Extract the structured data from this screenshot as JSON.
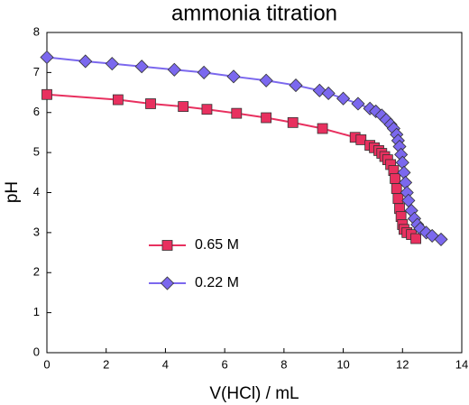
{
  "chart_data": {
    "type": "line",
    "title": "ammonia titration",
    "x_label": "V(HCl) / mL",
    "y_label": "pH",
    "xlim": [
      0,
      14
    ],
    "ylim": [
      0,
      8
    ],
    "xticks": [
      0,
      2,
      4,
      6,
      8,
      10,
      12,
      14
    ],
    "yticks": [
      0,
      1,
      2,
      3,
      4,
      5,
      6,
      7,
      8
    ],
    "legend": "lower left",
    "series": [
      {
        "name": "0.65 M",
        "color": "#e8305f",
        "marker": "square",
        "x": [
          0,
          2.4,
          3.5,
          4.6,
          5.4,
          6.4,
          7.4,
          8.3,
          9.3,
          10.4,
          10.6,
          10.9,
          11.05,
          11.2,
          11.3,
          11.4,
          11.5,
          11.6,
          11.7,
          11.75,
          11.8,
          11.85,
          11.9,
          11.95,
          12.0,
          12.05,
          12.15,
          12.3,
          12.45
        ],
        "values": [
          6.45,
          6.32,
          6.22,
          6.15,
          6.08,
          5.98,
          5.87,
          5.75,
          5.6,
          5.38,
          5.32,
          5.18,
          5.12,
          5.05,
          4.98,
          4.9,
          4.82,
          4.7,
          4.55,
          4.35,
          4.1,
          3.85,
          3.6,
          3.4,
          3.2,
          3.08,
          3.0,
          2.95,
          2.85
        ]
      },
      {
        "name": "0.22 M",
        "color": "#7b68ee",
        "marker": "diamond",
        "x": [
          0,
          1.3,
          2.2,
          3.2,
          4.3,
          5.3,
          6.3,
          7.4,
          8.4,
          9.2,
          9.5,
          10.0,
          10.5,
          10.9,
          11.1,
          11.3,
          11.45,
          11.6,
          11.7,
          11.8,
          11.85,
          11.9,
          11.95,
          12.0,
          12.05,
          12.1,
          12.15,
          12.2,
          12.3,
          12.4,
          12.5,
          12.6,
          12.8,
          13.0,
          13.3
        ],
        "values": [
          7.38,
          7.28,
          7.22,
          7.15,
          7.07,
          7.0,
          6.9,
          6.8,
          6.68,
          6.55,
          6.48,
          6.35,
          6.22,
          6.1,
          6.03,
          5.93,
          5.82,
          5.7,
          5.6,
          5.45,
          5.3,
          5.15,
          4.95,
          4.75,
          4.5,
          4.25,
          4.0,
          3.8,
          3.55,
          3.35,
          3.2,
          3.1,
          3.0,
          2.92,
          2.83
        ]
      }
    ]
  }
}
